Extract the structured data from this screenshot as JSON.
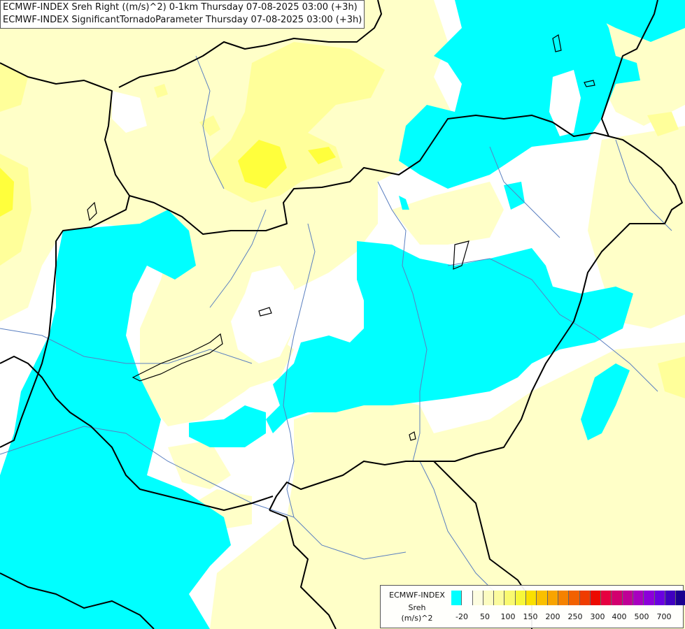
{
  "title": {
    "line1": "ECMWF-INDEX Sreh Right ((m/s)^2) 0-1km Thursday 07-08-2025 03:00 (+3h)",
    "line2": "ECMWF-INDEX SignificantTornadoParameter Thursday 07-08-2025 03:00 (+3h)"
  },
  "legend": {
    "model": "ECMWF-INDEX",
    "variable": "Sreh",
    "unit": "(m/s)^2",
    "colors": [
      "#00ffff",
      "#ffffff",
      "#fdfde0",
      "#fcfcc0",
      "#fbfb9e",
      "#f9f970",
      "#f7f73a",
      "#fae000",
      "#fac000",
      "#f8a400",
      "#f58200",
      "#f26100",
      "#ef3c00",
      "#ec0a00",
      "#e60040",
      "#d2006e",
      "#bf0096",
      "#a800bf",
      "#8c00d9",
      "#6a00e0",
      "#4000c0",
      "#1a0090"
    ],
    "tick_labels": [
      "-20",
      "50",
      "100",
      "150",
      "200",
      "250",
      "300",
      "400",
      "500",
      "700"
    ]
  },
  "layers": {
    "fill_colors": {
      "cyan": "#00ffff",
      "pale": "#ffffc8",
      "light_yellow": "#ffff9a",
      "yellow": "#ffff3c"
    },
    "border_color": "#000000",
    "river_color": "#5a7fc0"
  }
}
